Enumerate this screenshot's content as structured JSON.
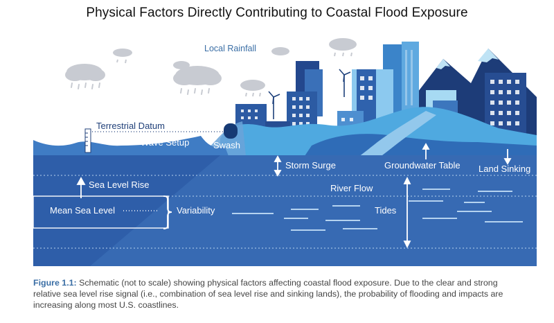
{
  "title": "Physical Factors Directly Contributing to Coastal Flood Exposure",
  "labels": {
    "local_rainfall": "Local Rainfall",
    "terrestrial_datum": "Terrestrial Datum",
    "wave_setup": "Wave Setup",
    "swash": "Swash",
    "storm_surge": "Storm Surge",
    "groundwater_table": "Groundwater Table",
    "land_sinking": "Land Sinking",
    "sea_level_rise": "Sea Level Rise",
    "river_flow": "River Flow",
    "mean_sea_level": "Mean Sea Level",
    "variability": "Variability",
    "tides": "Tides"
  },
  "caption": {
    "figure_label": "Figure 1.1:",
    "text": " Schematic (not to scale) showing physical factors affecting coastal flood exposure. Due to the clear and strong relative sea level rise signal (i.e., combination of sea level rise and sinking lands), the probability of flooding and impacts are increasing along most U.S. coastlines."
  },
  "colors": {
    "sea_deep": "#2b5aa6",
    "sea_mid": "#3a6fb8",
    "sea_light": "#5a95d2",
    "land_dark": "#1c3f7a",
    "land_light": "#4aa6dd",
    "land_pale": "#a9dcf2",
    "text_dark": "#1f3f78",
    "text_light": "#ffffff"
  }
}
